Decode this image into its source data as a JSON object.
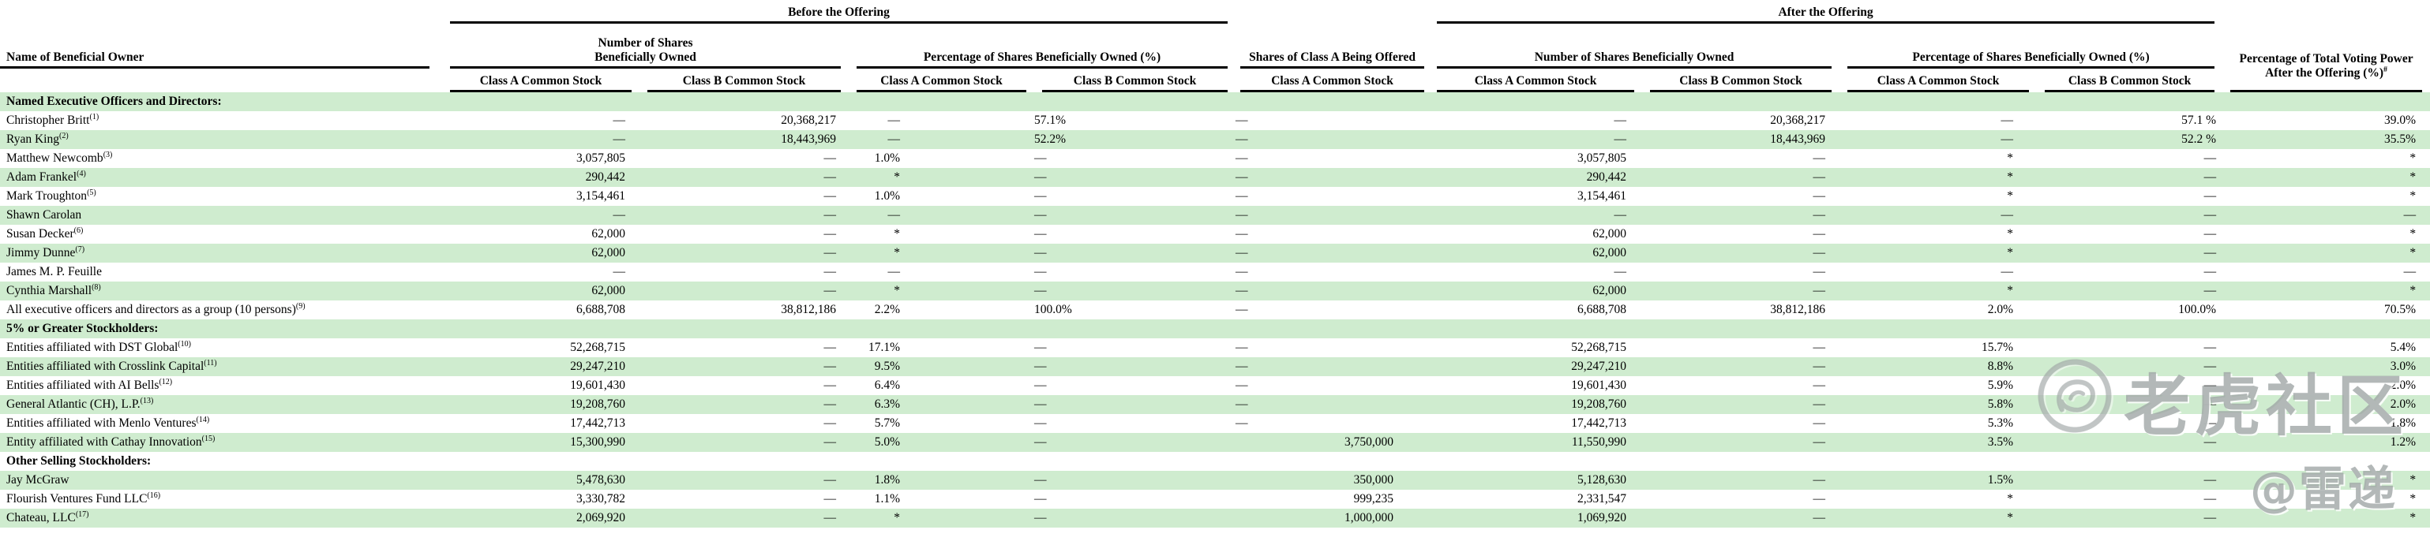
{
  "table": {
    "header": {
      "name_col": "Name of Beneficial Owner",
      "before": "Before the Offering",
      "after": "After the Offering",
      "num_shares": "Number of Shares Beneficially Owned",
      "pct_shares": "Percentage of Shares Beneficially Owned (%)",
      "offered": "Shares of Class A Being Offered",
      "voting": "Percentage of Total Voting Power After the Offering (%)",
      "voting_sup": "#",
      "class_a": "Class A Common Stock",
      "class_b": "Class B Common Stock"
    },
    "rows": [
      {
        "section": true,
        "name": "Named Executive Officers and Directors:"
      },
      {
        "section": false,
        "name": "Christopher Britt",
        "sup": "(1)",
        "values": [
          "—",
          "20,368,217",
          "—",
          "57.1%",
          "—",
          "—",
          "20,368,217",
          "—",
          "57.1 %",
          "39.0%"
        ]
      },
      {
        "section": false,
        "name": "Ryan King",
        "sup": "(2)",
        "values": [
          "—",
          "18,443,969",
          "—",
          "52.2%",
          "—",
          "—",
          "18,443,969",
          "—",
          "52.2 %",
          "35.5%"
        ]
      },
      {
        "section": false,
        "name": "Matthew Newcomb",
        "sup": "(3)",
        "values": [
          "3,057,805",
          "—",
          "1.0%",
          "—",
          "—",
          "3,057,805",
          "—",
          "*",
          "—",
          "*"
        ]
      },
      {
        "section": false,
        "name": "Adam Frankel",
        "sup": "(4)",
        "values": [
          "290,442",
          "—",
          "*",
          "—",
          "—",
          "290,442",
          "—",
          "*",
          "—",
          "*"
        ]
      },
      {
        "section": false,
        "name": "Mark Troughton",
        "sup": "(5)",
        "values": [
          "3,154,461",
          "—",
          "1.0%",
          "—",
          "—",
          "3,154,461",
          "—",
          "*",
          "—",
          "*"
        ]
      },
      {
        "section": false,
        "name": "Shawn Carolan",
        "values": [
          "—",
          "—",
          "—",
          "—",
          "—",
          "—",
          "—",
          "—",
          "—",
          "—"
        ]
      },
      {
        "section": false,
        "name": "Susan Decker",
        "sup": "(6)",
        "values": [
          "62,000",
          "—",
          "*",
          "—",
          "—",
          "62,000",
          "—",
          "*",
          "—",
          "*"
        ]
      },
      {
        "section": false,
        "name": "Jimmy Dunne",
        "sup": "(7)",
        "values": [
          "62,000",
          "—",
          "*",
          "—",
          "—",
          "62,000",
          "—",
          "*",
          "—",
          "*"
        ]
      },
      {
        "section": false,
        "name": "James M. P. Feuille",
        "values": [
          "—",
          "—",
          "—",
          "—",
          "—",
          "—",
          "—",
          "—",
          "—",
          "—"
        ]
      },
      {
        "section": false,
        "name": "Cynthia Marshall",
        "sup": "(8)",
        "values": [
          "62,000",
          "—",
          "*",
          "—",
          "—",
          "62,000",
          "—",
          "*",
          "—",
          "*"
        ]
      },
      {
        "section": false,
        "name": "All executive officers and directors as a group (10 persons)",
        "sup": "(9)",
        "values": [
          "6,688,708",
          "38,812,186",
          "2.2%",
          "100.0%",
          "—",
          "6,688,708",
          "38,812,186",
          "2.0%",
          "100.0%",
          "70.5%"
        ]
      },
      {
        "section": true,
        "name": "5% or Greater Stockholders:"
      },
      {
        "section": false,
        "name": "Entities affiliated with DST Global",
        "sup": "(10)",
        "values": [
          "52,268,715",
          "—",
          "17.1%",
          "—",
          "—",
          "52,268,715",
          "—",
          "15.7%",
          "—",
          "5.4%"
        ]
      },
      {
        "section": false,
        "name": "Entities affiliated with Crosslink Capital",
        "sup": "(11)",
        "values": [
          "29,247,210",
          "—",
          "9.5%",
          "—",
          "—",
          "29,247,210",
          "—",
          "8.8%",
          "—",
          "3.0%"
        ]
      },
      {
        "section": false,
        "name": "Entities affiliated with AI Bells",
        "sup": "(12)",
        "values": [
          "19,601,430",
          "—",
          "6.4%",
          "—",
          "—",
          "19,601,430",
          "—",
          "5.9%",
          "—",
          "2.0%"
        ]
      },
      {
        "section": false,
        "name": "General Atlantic (CH), L.P.",
        "sup": "(13)",
        "values": [
          "19,208,760",
          "—",
          "6.3%",
          "—",
          "—",
          "19,208,760",
          "—",
          "5.8%",
          "—",
          "2.0%"
        ]
      },
      {
        "section": false,
        "name": "Entities affiliated with Menlo Ventures",
        "sup": "(14)",
        "values": [
          "17,442,713",
          "—",
          "5.7%",
          "—",
          "—",
          "17,442,713",
          "—",
          "5.3%",
          "—",
          "1.8%"
        ]
      },
      {
        "section": false,
        "name": "Entity affiliated with Cathay Innovation",
        "sup": "(15)",
        "values": [
          "15,300,990",
          "—",
          "5.0%",
          "—",
          "3,750,000",
          "11,550,990",
          "—",
          "3.5%",
          "—",
          "1.2%"
        ]
      },
      {
        "section": true,
        "name": "Other Selling Stockholders:"
      },
      {
        "section": false,
        "name": "Jay McGraw",
        "values": [
          "5,478,630",
          "—",
          "1.8%",
          "—",
          "350,000",
          "5,128,630",
          "—",
          "1.5%",
          "—",
          "*"
        ]
      },
      {
        "section": false,
        "name": "Flourish Ventures Fund LLC",
        "sup": "(16)",
        "values": [
          "3,330,782",
          "—",
          "1.1%",
          "—",
          "999,235",
          "2,331,547",
          "—",
          "*",
          "—",
          "*"
        ]
      },
      {
        "section": false,
        "name": "Chateau, LLC",
        "sup": "(17)",
        "values": [
          "2,069,920",
          "—",
          "*",
          "—",
          "1,000,000",
          "1,069,920",
          "—",
          "*",
          "—",
          "*"
        ]
      }
    ]
  },
  "watermark": {
    "brand": "老虎社区",
    "handle": "@雷递"
  },
  "colors": {
    "row_stripe_green": "#cfeccf",
    "text": "#000000",
    "rule_line": "#000000",
    "watermark_gray": "#9ea4a4"
  }
}
